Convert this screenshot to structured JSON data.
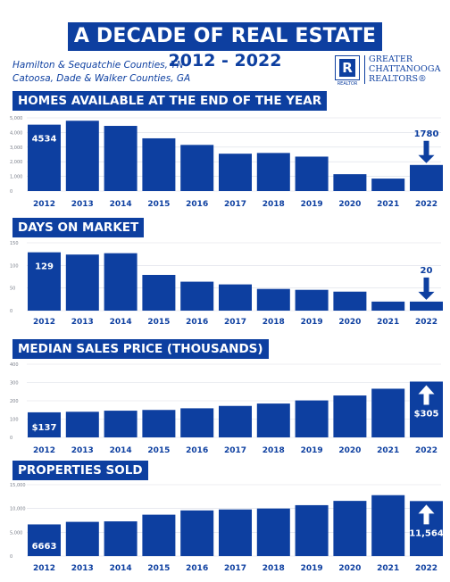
{
  "header": {
    "title": "A DECADE OF REAL ESTATE",
    "years": "2012 - 2022",
    "counties_line1": "Hamilton & Sequatchie Counties, TN",
    "counties_line2": "Catoosa, Dade & Walker Counties, GA"
  },
  "logo": {
    "mark_letter": "R",
    "mark_caption": "REALTOR",
    "line1": "GREATER",
    "line2": "CHATTANOOGA",
    "line3": "REALTORS"
  },
  "colors": {
    "brand": "#0d3fa0",
    "grid": "#d9dde6",
    "axis_text": "#7a7f8a"
  },
  "chart_data": [
    {
      "type": "bar",
      "title": "HOMES AVAILABLE AT THE END OF THE YEAR",
      "categories": [
        "2012",
        "2013",
        "2014",
        "2015",
        "2016",
        "2017",
        "2018",
        "2019",
        "2020",
        "2021",
        "2022"
      ],
      "values": [
        4534,
        4800,
        4450,
        3600,
        3150,
        2550,
        2600,
        2350,
        1150,
        850,
        1780
      ],
      "ylim": [
        0,
        5000
      ],
      "yticks": [
        0,
        1000,
        2000,
        3000,
        4000,
        5000
      ],
      "ytick_labels": [
        "0",
        "1,000",
        "2,000",
        "3,000",
        "4,000",
        "5,000"
      ],
      "first_label": "4534",
      "last_label": "1780",
      "arrow": "down",
      "grid": true
    },
    {
      "type": "bar",
      "title": "DAYS ON MARKET",
      "categories": [
        "2012",
        "2013",
        "2014",
        "2015",
        "2016",
        "2017",
        "2018",
        "2019",
        "2020",
        "2021",
        "2022"
      ],
      "values": [
        129,
        124,
        127,
        79,
        64,
        58,
        48,
        46,
        42,
        20,
        20
      ],
      "ylim": [
        0,
        150
      ],
      "yticks": [
        0,
        50,
        100,
        150
      ],
      "ytick_labels": [
        "0",
        "50",
        "100",
        "150"
      ],
      "first_label": "129",
      "last_label": "20",
      "arrow": "down",
      "grid": true
    },
    {
      "type": "bar",
      "title": "MEDIAN SALES PRICE (THOUSANDS)",
      "categories": [
        "2012",
        "2013",
        "2014",
        "2015",
        "2016",
        "2017",
        "2018",
        "2019",
        "2020",
        "2021",
        "2022"
      ],
      "values": [
        137,
        140,
        146,
        150,
        159,
        172,
        185,
        202,
        229,
        266,
        305
      ],
      "ylim": [
        0,
        400
      ],
      "yticks": [
        0,
        100,
        200,
        300,
        400
      ],
      "ytick_labels": [
        "0",
        "100",
        "200",
        "300",
        "400"
      ],
      "first_label": "$137",
      "last_label": "$305",
      "arrow": "up",
      "grid": true
    },
    {
      "type": "bar",
      "title": "PROPERTIES SOLD",
      "categories": [
        "2012",
        "2013",
        "2014",
        "2015",
        "2016",
        "2017",
        "2018",
        "2019",
        "2020",
        "2021",
        "2022"
      ],
      "values": [
        6663,
        7200,
        7300,
        8700,
        9600,
        9800,
        10000,
        10700,
        11600,
        12800,
        11564
      ],
      "ylim": [
        0,
        15000
      ],
      "yticks": [
        0,
        5000,
        10000,
        15000
      ],
      "ytick_labels": [
        "0",
        "5,000",
        "10,000",
        "15,000"
      ],
      "first_label": "6663",
      "last_label": "11,564",
      "arrow": "up",
      "grid": true
    }
  ]
}
